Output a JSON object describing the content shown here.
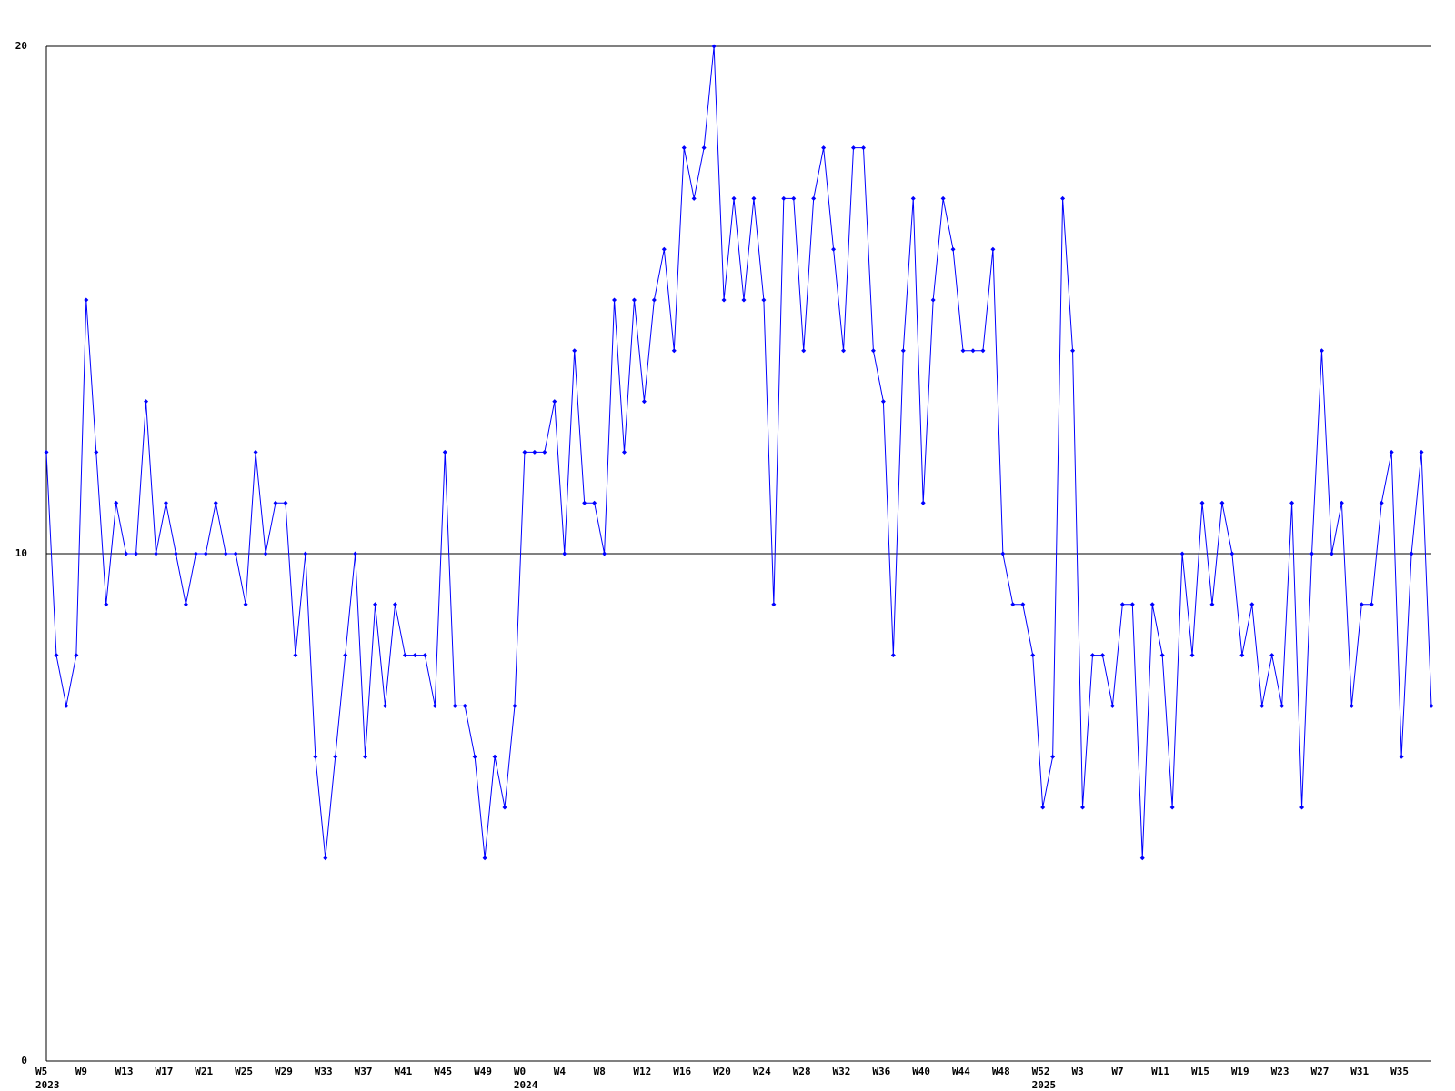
{
  "chart_data": {
    "type": "line",
    "categories": [
      "W5",
      null,
      null,
      null,
      "W9",
      null,
      null,
      null,
      "W13",
      null,
      null,
      null,
      "W17",
      null,
      null,
      null,
      "W21",
      null,
      null,
      null,
      "W25",
      null,
      null,
      null,
      "W29",
      null,
      null,
      null,
      "W33",
      null,
      null,
      null,
      "W37",
      null,
      null,
      null,
      "W41",
      null,
      null,
      null,
      "W45",
      null,
      null,
      null,
      "W49",
      null,
      null,
      null,
      "W0",
      null,
      null,
      null,
      "W4",
      null,
      null,
      null,
      "W8",
      null,
      null,
      null,
      "W12",
      null,
      null,
      null,
      "W16",
      null,
      null,
      null,
      "W20",
      null,
      null,
      null,
      "W24",
      null,
      null,
      null,
      "W28",
      null,
      null,
      null,
      "W32",
      null,
      null,
      null,
      "W36",
      null,
      null,
      null,
      "W40",
      null,
      null,
      null,
      "W44",
      null,
      null,
      null,
      "W48",
      null,
      null,
      null,
      "W52",
      null,
      null,
      null,
      "W3",
      null,
      null,
      null,
      "W7",
      null,
      null,
      null,
      "W11",
      null,
      null,
      null,
      "W15",
      null,
      null,
      null,
      "W19",
      null,
      null,
      null,
      "W23",
      null,
      null,
      null,
      "W27",
      null,
      null,
      null,
      "W31",
      null,
      null,
      null,
      "W35",
      null,
      null,
      null
    ],
    "years": [
      "2023",
      null,
      null,
      null,
      null,
      null,
      null,
      null,
      null,
      null,
      null,
      null,
      null,
      null,
      null,
      null,
      null,
      null,
      null,
      null,
      null,
      null,
      null,
      null,
      null,
      null,
      null,
      null,
      null,
      null,
      null,
      null,
      null,
      null,
      null,
      null,
      null,
      null,
      null,
      null,
      null,
      null,
      null,
      null,
      null,
      null,
      null,
      null,
      "2024",
      null,
      null,
      null,
      null,
      null,
      null,
      null,
      null,
      null,
      null,
      null,
      null,
      null,
      null,
      null,
      null,
      null,
      null,
      null,
      null,
      null,
      null,
      null,
      null,
      null,
      null,
      null,
      null,
      null,
      null,
      null,
      null,
      null,
      null,
      null,
      null,
      null,
      null,
      null,
      null,
      null,
      null,
      null,
      null,
      null,
      null,
      null,
      null,
      null,
      null,
      null,
      "2025",
      null,
      null,
      null,
      null,
      null,
      null,
      null,
      null,
      null,
      null,
      null,
      null,
      null,
      null,
      null,
      null,
      null,
      null,
      null,
      null,
      null,
      null,
      null,
      null,
      null,
      null,
      null,
      null,
      null,
      null,
      null,
      null,
      null,
      null,
      null,
      null,
      null,
      null
    ],
    "series": [
      {
        "color": "#0000ff",
        "values": [
          12,
          8,
          7,
          8,
          15,
          12,
          9,
          11,
          10,
          10,
          13,
          10,
          11,
          10,
          9,
          10,
          10,
          11,
          10,
          10,
          9,
          12,
          10,
          11,
          11,
          8,
          10,
          6,
          4,
          6,
          8,
          10,
          6,
          9,
          7,
          9,
          8,
          8,
          8,
          7,
          12,
          7,
          7,
          6,
          4,
          6,
          5,
          7,
          12,
          12,
          12,
          13,
          10,
          14,
          11,
          11,
          10,
          15,
          12,
          15,
          13,
          15,
          16,
          14,
          18,
          17,
          18,
          20,
          15,
          17,
          15,
          17,
          15,
          9,
          17,
          17,
          14,
          17,
          18,
          16,
          14,
          18,
          18,
          14,
          13,
          8,
          14,
          17,
          11,
          15,
          17,
          16,
          14,
          14,
          14,
          16,
          10,
          9,
          9,
          8,
          5,
          6,
          17,
          14,
          5,
          8,
          8,
          7,
          9,
          9,
          4,
          9,
          8,
          5,
          10,
          8,
          11,
          9,
          11,
          10,
          8,
          9,
          7,
          8,
          7,
          11,
          5,
          10,
          14,
          10,
          11,
          7,
          9,
          9,
          11,
          12,
          6,
          10,
          12,
          7
        ]
      }
    ],
    "ylim": [
      0,
      20
    ],
    "yticks": [
      0,
      10,
      20
    ],
    "grid": true
  }
}
